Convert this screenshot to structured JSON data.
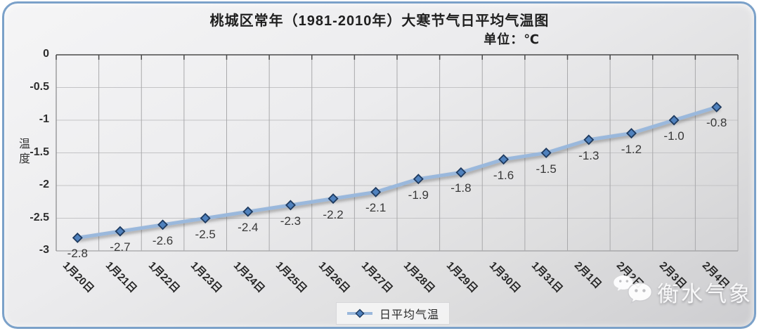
{
  "window": {
    "frame_border_color": "#7ba1c9"
  },
  "header": {
    "title": "桃城区常年（1981-2010年）大寒节气日平均气温图",
    "unit_label": "单位：℃"
  },
  "y_axis": {
    "title": "温度"
  },
  "legend": {
    "label": "日平均气温",
    "marker_icon": "diamond-marker-icon",
    "position": "bottom"
  },
  "watermark": {
    "icon": "wechat-icon",
    "text": "衡水气象"
  },
  "chart_data": {
    "type": "line",
    "title": "桃城区常年（1981-2010年）大寒节气日平均气温图",
    "subtitle": "单位：℃",
    "xlabel": "",
    "ylabel": "温度",
    "unit": "℃",
    "categories": [
      "1月20日",
      "1月21日",
      "1月22日",
      "1月23日",
      "1月24日",
      "1月25日",
      "1月26日",
      "1月27日",
      "1月28日",
      "1月29日",
      "1月30日",
      "1月31日",
      "2月1日",
      "2月2日",
      "2月3日",
      "2月4日"
    ],
    "series": [
      {
        "name": "日平均气温",
        "values": [
          -2.8,
          -2.7,
          -2.6,
          -2.5,
          -2.4,
          -2.3,
          -2.2,
          -2.1,
          -1.9,
          -1.8,
          -1.6,
          -1.5,
          -1.3,
          -1.2,
          -1.0,
          -0.8
        ]
      }
    ],
    "data_labels": [
      "-2.8",
      "-2.7",
      "-2.6",
      "-2.5",
      "-2.4",
      "-2.3",
      "-2.2",
      "-2.1",
      "-1.9",
      "-1.8",
      "-1.6",
      "-1.5",
      "-1.3",
      "-1.2",
      "-1.0",
      "-0.8"
    ],
    "ylim": [
      -3,
      0
    ],
    "yticks": [
      0,
      -0.5,
      -1,
      -1.5,
      -2,
      -2.5,
      -3
    ],
    "grid": true,
    "legend_position": "bottom",
    "colors": {
      "line": "#9ab8dc",
      "marker_fill": "#4f81bd",
      "marker_stroke": "#1e3a5f",
      "grid_vertical": "#a9a9ab",
      "grid_horizontal": "#c3c3c5",
      "axis": "#4a4a4a",
      "label_text": "#383838"
    }
  }
}
